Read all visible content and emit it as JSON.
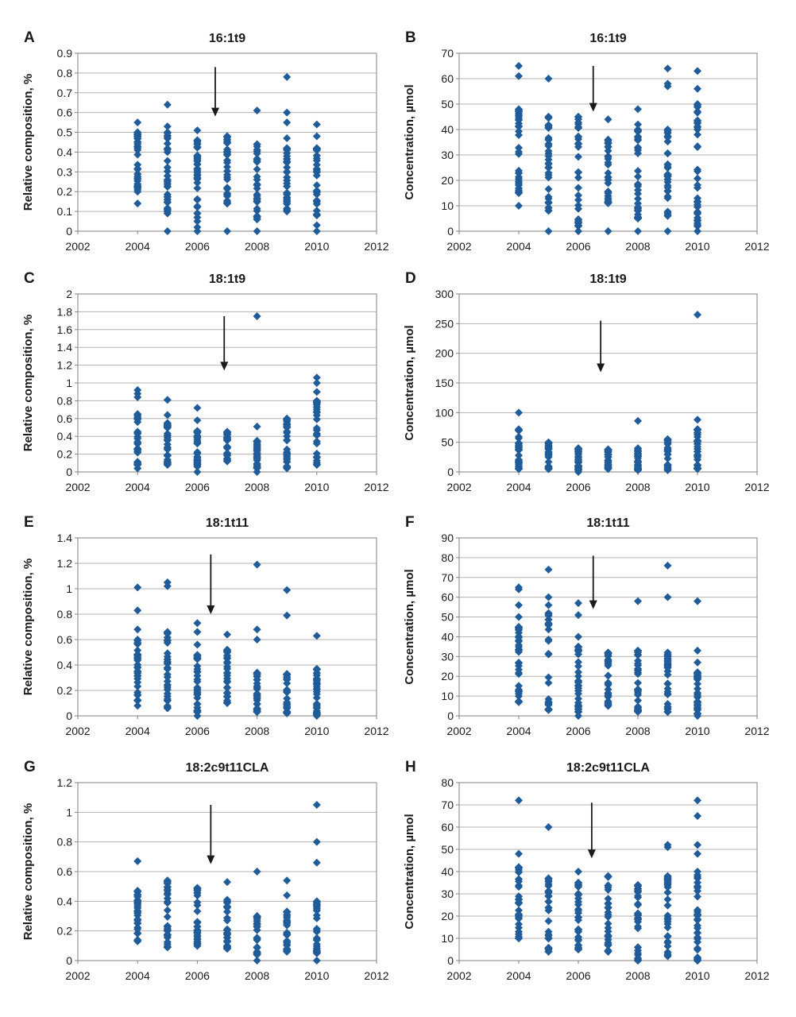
{
  "colors": {
    "marker": "#1F5C99",
    "grid": "#B3B3B3",
    "axis": "#808080",
    "arrow": "#1a1a1a",
    "text": "#1a1a1a"
  },
  "chart_data": [
    {
      "panel": "A",
      "type": "scatter",
      "title": "16:1t9",
      "xlabel": "",
      "ylabel": "Relative composition, %",
      "xlim": [
        2002,
        2012
      ],
      "xticks": [
        2002,
        2004,
        2006,
        2008,
        2010,
        2012
      ],
      "ylim": [
        0,
        0.9
      ],
      "yticks": [
        0,
        0.1,
        0.2,
        0.3,
        0.4,
        0.5,
        0.6,
        0.7,
        0.8,
        0.9
      ],
      "grid": true,
      "arrow": {
        "x": 2006.6,
        "y_from": 0.83,
        "y_to": 0.58
      },
      "series": [
        {
          "x": 2004,
          "range": [
            0.2,
            0.5
          ],
          "points": [
            0.14,
            0.55
          ]
        },
        {
          "x": 2005,
          "range": [
            0.1,
            0.5
          ],
          "points": [
            0,
            0.09,
            0.53,
            0.64
          ]
        },
        {
          "x": 2006,
          "range": [
            0.09,
            0.46
          ],
          "points": [
            0,
            0.02,
            0.05,
            0.07,
            0.51
          ]
        },
        {
          "x": 2007,
          "range": [
            0.14,
            0.48
          ],
          "points": [
            0
          ]
        },
        {
          "x": 2008,
          "range": [
            0.06,
            0.44
          ],
          "points": [
            0,
            0.61
          ]
        },
        {
          "x": 2009,
          "range": [
            0.1,
            0.42
          ],
          "points": [
            0.47,
            0.55,
            0.6,
            0.78
          ]
        },
        {
          "x": 2010,
          "range": [
            0.08,
            0.42
          ],
          "points": [
            0,
            0.03,
            0.48,
            0.54
          ]
        }
      ]
    },
    {
      "panel": "B",
      "type": "scatter",
      "title": "16:1t9",
      "xlabel": "",
      "ylabel": "Concentration, µmol",
      "xlim": [
        2002,
        2012
      ],
      "xticks": [
        2002,
        2004,
        2006,
        2008,
        2010,
        2012
      ],
      "ylim": [
        0,
        70
      ],
      "yticks": [
        0,
        10,
        20,
        30,
        40,
        50,
        60,
        70
      ],
      "grid": true,
      "arrow": {
        "x": 2006.5,
        "y_from": 65,
        "y_to": 47
      },
      "series": [
        {
          "x": 2004,
          "range": [
            15,
            48
          ],
          "points": [
            10,
            61,
            65
          ]
        },
        {
          "x": 2005,
          "range": [
            8,
            45
          ],
          "points": [
            0,
            60
          ]
        },
        {
          "x": 2006,
          "range": [
            2,
            45
          ],
          "points": [
            0
          ]
        },
        {
          "x": 2007,
          "range": [
            11,
            36
          ],
          "points": [
            0,
            44
          ]
        },
        {
          "x": 2008,
          "range": [
            5,
            40
          ],
          "points": [
            0,
            42,
            48
          ]
        },
        {
          "x": 2009,
          "range": [
            6,
            40
          ],
          "points": [
            0,
            57,
            58,
            64
          ]
        },
        {
          "x": 2010,
          "range": [
            2,
            50
          ],
          "points": [
            0,
            56,
            63
          ]
        }
      ]
    },
    {
      "panel": "C",
      "type": "scatter",
      "title": "18:1t9",
      "xlabel": "",
      "ylabel": "Relative composition, %",
      "xlim": [
        2002,
        2012
      ],
      "xticks": [
        2002,
        2004,
        2006,
        2008,
        2010,
        2012
      ],
      "ylim": [
        0,
        2
      ],
      "yticks": [
        0,
        0.2,
        0.4,
        0.6,
        0.8,
        1,
        1.2,
        1.4,
        1.6,
        1.8,
        2
      ],
      "grid": true,
      "arrow": {
        "x": 2006.9,
        "y_from": 1.75,
        "y_to": 1.14
      },
      "series": [
        {
          "x": 2004,
          "range": [
            0.08,
            0.65
          ],
          "points": [
            0.04,
            0.84,
            0.88,
            0.92
          ]
        },
        {
          "x": 2005,
          "range": [
            0.08,
            0.55
          ],
          "points": [
            0.64,
            0.81
          ]
        },
        {
          "x": 2006,
          "range": [
            0.06,
            0.46
          ],
          "points": [
            0,
            0.58,
            0.72
          ]
        },
        {
          "x": 2007,
          "range": [
            0.12,
            0.45
          ],
          "points": []
        },
        {
          "x": 2008,
          "range": [
            0.04,
            0.35
          ],
          "points": [
            0,
            0.51,
            1.75
          ]
        },
        {
          "x": 2009,
          "range": [
            0.04,
            0.6
          ],
          "points": []
        },
        {
          "x": 2010,
          "range": [
            0.08,
            0.8
          ],
          "points": [
            0.9,
            1.0,
            1.06
          ]
        }
      ]
    },
    {
      "panel": "D",
      "type": "scatter",
      "title": "18:1t9",
      "xlabel": "",
      "ylabel": "Concentration, µmol",
      "xlim": [
        2002,
        2012
      ],
      "xticks": [
        2002,
        2004,
        2006,
        2008,
        2010,
        2012
      ],
      "ylim": [
        0,
        300
      ],
      "yticks": [
        0,
        50,
        100,
        150,
        200,
        250,
        300
      ],
      "grid": true,
      "arrow": {
        "x": 2006.75,
        "y_from": 255,
        "y_to": 168
      },
      "series": [
        {
          "x": 2004,
          "range": [
            5,
            72
          ],
          "points": [
            100
          ]
        },
        {
          "x": 2005,
          "range": [
            5,
            50
          ],
          "points": []
        },
        {
          "x": 2006,
          "range": [
            3,
            40
          ],
          "points": [
            0
          ]
        },
        {
          "x": 2007,
          "range": [
            5,
            38
          ],
          "points": []
        },
        {
          "x": 2008,
          "range": [
            3,
            40
          ],
          "points": [
            86
          ]
        },
        {
          "x": 2009,
          "range": [
            3,
            55
          ],
          "points": []
        },
        {
          "x": 2010,
          "range": [
            5,
            72
          ],
          "points": [
            88,
            265
          ]
        }
      ]
    },
    {
      "panel": "E",
      "type": "scatter",
      "title": "18:1t11",
      "xlabel": "",
      "ylabel": "Relative composition, %",
      "xlim": [
        2002,
        2012
      ],
      "xticks": [
        2002,
        2004,
        2006,
        2008,
        2010,
        2012
      ],
      "ylim": [
        0,
        1.4
      ],
      "yticks": [
        0,
        0.2,
        0.4,
        0.6,
        0.8,
        1,
        1.2,
        1.4
      ],
      "grid": true,
      "arrow": {
        "x": 2006.45,
        "y_from": 1.27,
        "y_to": 0.8
      },
      "series": [
        {
          "x": 2004,
          "range": [
            0.12,
            0.6
          ],
          "points": [
            0.08,
            0.68,
            0.83,
            1.01
          ]
        },
        {
          "x": 2005,
          "range": [
            0.06,
            0.66
          ],
          "points": [
            1.02,
            1.05
          ]
        },
        {
          "x": 2006,
          "range": [
            0.03,
            0.48
          ],
          "points": [
            0,
            0.56,
            0.66,
            0.73
          ]
        },
        {
          "x": 2007,
          "range": [
            0.1,
            0.52
          ],
          "points": [
            0.64
          ]
        },
        {
          "x": 2008,
          "range": [
            0.03,
            0.34
          ],
          "points": [
            0.6,
            0.68,
            1.19
          ]
        },
        {
          "x": 2009,
          "range": [
            0.02,
            0.33
          ],
          "points": [
            0.79,
            0.99
          ]
        },
        {
          "x": 2010,
          "range": [
            0.01,
            0.37
          ],
          "points": [
            0,
            0.63
          ]
        }
      ]
    },
    {
      "panel": "F",
      "type": "scatter",
      "title": "18:1t11",
      "xlabel": "",
      "ylabel": "Concentration, µmol",
      "xlim": [
        2002,
        2012
      ],
      "xticks": [
        2002,
        2004,
        2006,
        2008,
        2010,
        2012
      ],
      "ylim": [
        0,
        90
      ],
      "yticks": [
        0,
        10,
        20,
        30,
        40,
        50,
        60,
        70,
        80,
        90
      ],
      "grid": true,
      "arrow": {
        "x": 2006.5,
        "y_from": 81,
        "y_to": 54
      },
      "series": [
        {
          "x": 2004,
          "range": [
            7,
            45
          ],
          "points": [
            50,
            56,
            64,
            65
          ]
        },
        {
          "x": 2005,
          "range": [
            3,
            52
          ],
          "points": [
            56,
            60,
            74
          ]
        },
        {
          "x": 2006,
          "range": [
            2,
            35
          ],
          "points": [
            0,
            40,
            51,
            57
          ]
        },
        {
          "x": 2007,
          "range": [
            5,
            32
          ],
          "points": []
        },
        {
          "x": 2008,
          "range": [
            2,
            33
          ],
          "points": [
            58
          ]
        },
        {
          "x": 2009,
          "range": [
            2,
            32
          ],
          "points": [
            60,
            76
          ]
        },
        {
          "x": 2010,
          "range": [
            1,
            22
          ],
          "points": [
            0,
            27,
            33,
            58
          ]
        }
      ]
    },
    {
      "panel": "G",
      "type": "scatter",
      "title": "18:2c9t11CLA",
      "xlabel": "",
      "ylabel": "Relative composition, %",
      "xlim": [
        2002,
        2012
      ],
      "xticks": [
        2002,
        2004,
        2006,
        2008,
        2010,
        2012
      ],
      "ylim": [
        0,
        1.2
      ],
      "yticks": [
        0,
        0.2,
        0.4,
        0.6,
        0.8,
        1,
        1.2
      ],
      "grid": true,
      "arrow": {
        "x": 2006.45,
        "y_from": 1.05,
        "y_to": 0.65
      },
      "series": [
        {
          "x": 2004,
          "range": [
            0.13,
            0.47
          ],
          "points": [
            0.67
          ]
        },
        {
          "x": 2005,
          "range": [
            0.09,
            0.54
          ],
          "points": []
        },
        {
          "x": 2006,
          "range": [
            0.1,
            0.49
          ],
          "points": []
        },
        {
          "x": 2007,
          "range": [
            0.08,
            0.41
          ],
          "points": [
            0.53
          ]
        },
        {
          "x": 2008,
          "range": [
            0.04,
            0.3
          ],
          "points": [
            0,
            0.6
          ]
        },
        {
          "x": 2009,
          "range": [
            0.06,
            0.33
          ],
          "points": [
            0.44,
            0.54
          ]
        },
        {
          "x": 2010,
          "range": [
            0.05,
            0.4
          ],
          "points": [
            0,
            0.66,
            0.8,
            1.05
          ]
        }
      ]
    },
    {
      "panel": "H",
      "type": "scatter",
      "title": "18:2c9t11CLA",
      "xlabel": "",
      "ylabel": "Concentration, µmol",
      "xlim": [
        2002,
        2012
      ],
      "xticks": [
        2002,
        2004,
        2006,
        2008,
        2010,
        2012
      ],
      "ylim": [
        0,
        80
      ],
      "yticks": [
        0,
        10,
        20,
        30,
        40,
        50,
        60,
        70,
        80
      ],
      "grid": true,
      "arrow": {
        "x": 2006.45,
        "y_from": 71,
        "y_to": 46
      },
      "series": [
        {
          "x": 2004,
          "range": [
            10,
            42
          ],
          "points": [
            48,
            72
          ]
        },
        {
          "x": 2005,
          "range": [
            4,
            37
          ],
          "points": [
            60
          ]
        },
        {
          "x": 2006,
          "range": [
            5,
            35
          ],
          "points": [
            40
          ]
        },
        {
          "x": 2007,
          "range": [
            4,
            38
          ],
          "points": []
        },
        {
          "x": 2008,
          "range": [
            0,
            34
          ],
          "points": [
            0
          ]
        },
        {
          "x": 2009,
          "range": [
            2,
            38
          ],
          "points": [
            51,
            52
          ]
        },
        {
          "x": 2010,
          "range": [
            0,
            40
          ],
          "points": [
            0,
            48,
            52,
            65,
            72
          ]
        }
      ]
    }
  ]
}
